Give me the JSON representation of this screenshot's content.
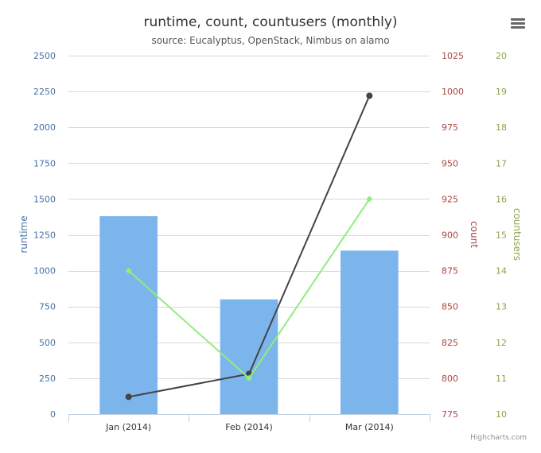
{
  "chart_data": {
    "type": "bar+line",
    "title": "runtime, count, countusers (monthly)",
    "subtitle": "source: Eucalyptus, OpenStack, Nimbus on alamo",
    "categories": [
      "Jan (2014)",
      "Feb (2014)",
      "Mar (2014)"
    ],
    "axes": {
      "runtime": {
        "label": "runtime",
        "min": 0,
        "max": 2500,
        "ticks": [
          0,
          250,
          500,
          750,
          1000,
          1250,
          1500,
          1750,
          2000,
          2250,
          2500
        ],
        "color": "#4572a7"
      },
      "count": {
        "label": "count",
        "min": 775,
        "max": 1025,
        "ticks": [
          775,
          800,
          825,
          850,
          875,
          900,
          925,
          950,
          975,
          1000,
          1025
        ],
        "color": "#aa4643"
      },
      "countusers": {
        "label": "countusers",
        "min": 10,
        "max": 20,
        "ticks": [
          10,
          11,
          12,
          13,
          14,
          15,
          16,
          17,
          18,
          19,
          20
        ],
        "color": "#89a54e"
      }
    },
    "series": [
      {
        "key": "runtime",
        "kind": "bar",
        "axis": "runtime",
        "color": "#7cb5ec",
        "values": [
          1380,
          800,
          1140
        ]
      },
      {
        "key": "count",
        "kind": "line",
        "axis": "count",
        "color": "#434348",
        "values": [
          787,
          803,
          997
        ]
      },
      {
        "key": "countusers",
        "kind": "line",
        "axis": "countusers",
        "color": "#90ed7d",
        "values": [
          14,
          11,
          16
        ]
      }
    ],
    "grid": true,
    "legend": "none"
  },
  "menu_icon": "hamburger-menu-icon",
  "credits": "Highcharts.com"
}
